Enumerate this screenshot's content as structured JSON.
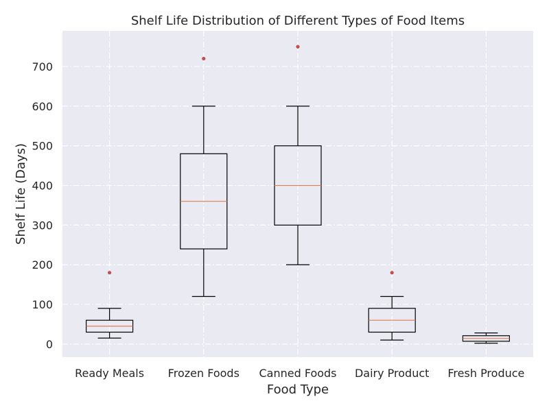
{
  "colors": {
    "plot_background": "#eaeaf2",
    "grid": "#ffffff",
    "box_edge": "#000000",
    "median": "#e07b54",
    "outlier": "#c44e52"
  },
  "chart_data": {
    "type": "box",
    "title": "Shelf Life Distribution of Different Types of Food Items",
    "xlabel": "Food Type",
    "ylabel": "Shelf Life (Days)",
    "ylim": [
      -33,
      790
    ],
    "yticks": [
      0,
      100,
      200,
      300,
      400,
      500,
      600,
      700
    ],
    "grid": true,
    "grid_style": "dashdot",
    "categories": [
      "Ready Meals",
      "Frozen Foods",
      "Canned Foods",
      "Dairy Product",
      "Fresh Produce"
    ],
    "boxes": [
      {
        "category": "Ready Meals",
        "whisker_low": 15,
        "q1": 30,
        "median": 45,
        "q3": 60,
        "whisker_high": 90,
        "outliers": [
          180
        ]
      },
      {
        "category": "Frozen Foods",
        "whisker_low": 120,
        "q1": 240,
        "median": 360,
        "q3": 480,
        "whisker_high": 600,
        "outliers": [
          720
        ]
      },
      {
        "category": "Canned Foods",
        "whisker_low": 200,
        "q1": 300,
        "median": 400,
        "q3": 500,
        "whisker_high": 600,
        "outliers": [
          750
        ]
      },
      {
        "category": "Dairy Product",
        "whisker_low": 10,
        "q1": 30,
        "median": 60,
        "q3": 90,
        "whisker_high": 120,
        "outliers": [
          180
        ]
      },
      {
        "category": "Fresh Produce",
        "whisker_low": 2,
        "q1": 7,
        "median": 14,
        "q3": 21,
        "whisker_high": 28,
        "outliers": []
      }
    ]
  }
}
